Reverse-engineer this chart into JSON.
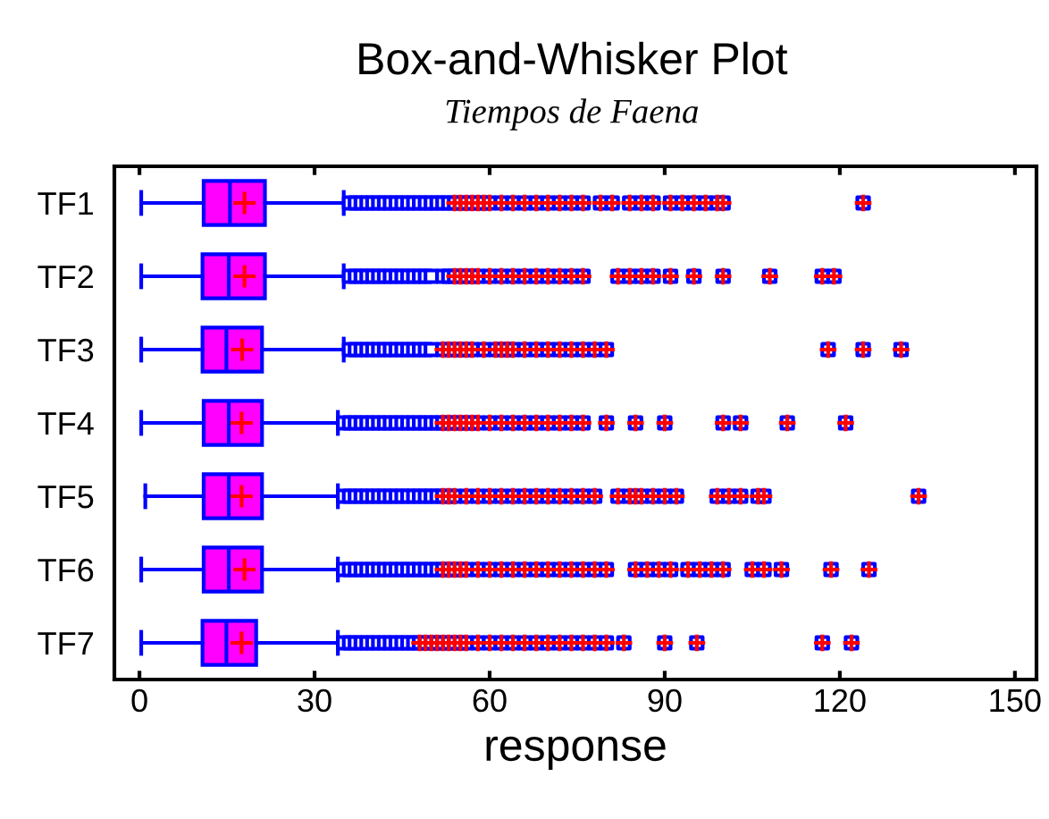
{
  "chart_data": {
    "type": "box",
    "orientation": "horizontal",
    "title": "Box-and-Whisker Plot",
    "subtitle": "Tiempos de Faena",
    "xlabel": "response",
    "categories": [
      "TF1",
      "TF2",
      "TF3",
      "TF4",
      "TF5",
      "TF6",
      "TF7"
    ],
    "xlim": [
      -4.3,
      153.7
    ],
    "xticks": [
      0,
      30,
      60,
      90,
      120,
      150
    ],
    "grid": false,
    "legend": false,
    "color": "#ff00ff",
    "boxes": [
      {
        "low": 0.3,
        "q1": 11,
        "median": 15.5,
        "q3": 21.5,
        "high": 35,
        "mean": 18,
        "outliers": [
          36,
          37,
          38,
          39,
          40,
          41,
          42,
          43,
          44,
          45,
          46,
          47,
          48,
          49,
          50,
          51,
          52,
          53,
          54,
          55,
          56,
          57,
          58,
          59,
          60,
          62,
          64,
          66,
          68,
          70,
          72,
          74,
          76,
          79,
          81,
          84,
          86,
          88,
          91,
          93,
          95,
          97,
          99,
          100,
          124
        ]
      },
      {
        "low": 0.3,
        "q1": 10.8,
        "median": 15.3,
        "q3": 21.5,
        "high": 35,
        "mean": 18,
        "outliers": [
          36,
          37,
          38,
          39,
          40,
          41,
          42,
          43,
          44,
          45,
          46,
          47,
          48,
          49,
          50,
          52,
          53,
          54,
          55,
          56,
          57,
          58,
          60,
          62,
          64,
          66,
          68,
          70,
          72,
          74,
          76,
          82,
          84,
          86,
          88,
          91,
          95,
          100,
          108,
          117,
          119
        ]
      },
      {
        "low": 0.3,
        "q1": 10.8,
        "median": 14.9,
        "q3": 21,
        "high": 35,
        "mean": 17.6,
        "outliers": [
          36,
          37,
          38,
          39,
          40,
          41,
          42,
          43,
          44,
          45,
          46,
          47,
          48,
          49,
          50,
          52,
          53,
          54,
          55,
          56,
          57,
          59,
          61,
          62,
          63,
          64,
          66,
          68,
          70,
          72,
          74,
          76,
          78,
          80,
          118,
          124,
          130.5
        ]
      },
      {
        "low": 0.3,
        "q1": 11,
        "median": 15.3,
        "q3": 21,
        "high": 34,
        "mean": 17.5,
        "outliers": [
          35,
          36,
          37,
          38,
          39,
          40,
          41,
          42,
          43,
          44,
          45,
          46,
          47,
          48,
          49,
          50,
          51,
          52,
          53,
          54,
          55,
          56,
          57,
          58,
          60,
          62,
          64,
          66,
          68,
          70,
          72,
          74,
          76,
          80,
          85,
          90,
          100,
          103,
          111,
          121
        ]
      },
      {
        "low": 1,
        "q1": 11,
        "median": 15.3,
        "q3": 21,
        "high": 34,
        "mean": 17.5,
        "outliers": [
          35,
          36,
          37,
          38,
          39,
          40,
          41,
          42,
          43,
          44,
          45,
          46,
          47,
          48,
          49,
          50,
          51,
          52,
          53,
          54,
          56,
          58,
          60,
          62,
          64,
          66,
          68,
          70,
          72,
          74,
          76,
          78,
          82,
          84,
          85,
          86,
          88,
          90,
          92,
          99,
          101,
          103,
          106,
          107,
          133.5
        ]
      },
      {
        "low": 0.3,
        "q1": 11,
        "median": 15.3,
        "q3": 21,
        "high": 34,
        "mean": 18,
        "outliers": [
          35,
          36,
          37,
          38,
          39,
          40,
          41,
          42,
          43,
          44,
          45,
          46,
          47,
          48,
          49,
          50,
          51,
          52,
          53,
          54,
          55,
          56,
          58,
          60,
          62,
          64,
          66,
          68,
          70,
          72,
          74,
          76,
          78,
          80,
          85,
          87,
          89,
          91,
          94,
          96,
          98,
          100,
          105,
          107,
          110,
          118.5,
          125
        ]
      },
      {
        "low": 0.3,
        "q1": 10.8,
        "median": 14.9,
        "q3": 20,
        "high": 34,
        "mean": 17.5,
        "outliers": [
          35,
          36,
          37,
          38,
          39,
          40,
          41,
          42,
          43,
          44,
          45,
          46,
          47,
          48,
          49,
          50,
          51,
          52,
          53,
          54,
          55,
          56,
          58,
          60,
          62,
          64,
          66,
          68,
          70,
          72,
          74,
          76,
          78,
          80,
          83,
          90,
          95.5,
          117,
          122
        ]
      }
    ]
  }
}
